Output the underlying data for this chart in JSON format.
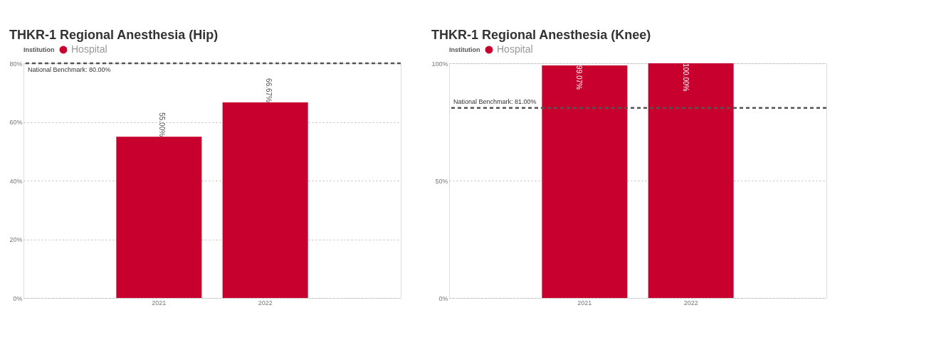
{
  "chart_data": [
    {
      "type": "bar",
      "title": "THKR-1 Regional Anesthesia (Hip)",
      "legend_title": "Institution",
      "legend": "top left",
      "grid": "y",
      "categories": [
        "2021",
        "2022"
      ],
      "series": [
        {
          "name": "Hospital",
          "color": "#c8002d",
          "values": [
            55.0,
            66.67
          ],
          "value_labels": [
            "55.00%",
            "66.67%"
          ]
        }
      ],
      "ylim": [
        0,
        80
      ],
      "yticks": [
        {
          "value": 0,
          "label": "0%"
        },
        {
          "value": 20,
          "label": "20%"
        },
        {
          "value": 40,
          "label": "40%"
        },
        {
          "value": 60,
          "label": "60%"
        },
        {
          "value": 80,
          "label": "80%"
        }
      ],
      "ref_lines": [
        {
          "axis": "y",
          "value": 80,
          "label": "National Benchmark: 80.00%",
          "color": "#555555",
          "line_style": "dashed"
        }
      ]
    },
    {
      "type": "bar",
      "title": "THKR-1 Regional Anesthesia (Knee)",
      "legend_title": "Institution",
      "legend": "top left",
      "grid": "y",
      "categories": [
        "2021",
        "2022"
      ],
      "series": [
        {
          "name": "Hospital",
          "color": "#c8002d",
          "values": [
            99.07,
            100.0
          ],
          "value_labels": [
            "99.07%",
            "100.00%"
          ]
        }
      ],
      "ylim": [
        0,
        100
      ],
      "yticks": [
        {
          "value": 0,
          "label": "0%"
        },
        {
          "value": 50,
          "label": "50%"
        },
        {
          "value": 100,
          "label": "100%"
        }
      ],
      "ref_lines": [
        {
          "axis": "y",
          "value": 81,
          "label": "National Benchmark: 81.00%",
          "color": "#555555",
          "line_style": "dashed"
        }
      ]
    }
  ]
}
